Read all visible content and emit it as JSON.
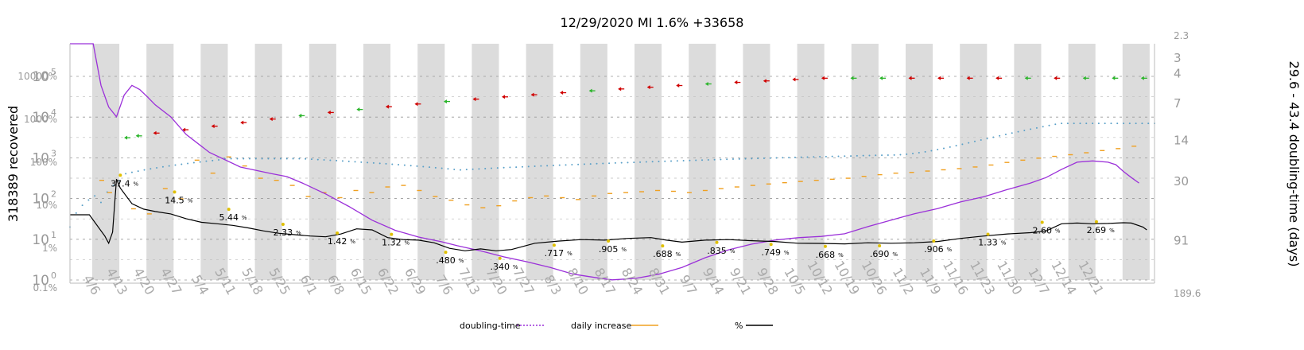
{
  "chart_data": {
    "type": "line",
    "title": "12/29/2020 MI 1.6% +33658",
    "ylabel_left": "318389 recovered",
    "ylabel_right": "29.6 - 43.4 doubling-time (days)",
    "x_ticks": [
      "4/6",
      "4/13",
      "4/20",
      "4/27",
      "5/4",
      "5/11",
      "5/18",
      "5/25",
      "6/1",
      "6/8",
      "6/15",
      "6/22",
      "6/29",
      "7/6",
      "7/13",
      "7/20",
      "7/27",
      "8/3",
      "8/10",
      "8/17",
      "8/24",
      "8/31",
      "9/7",
      "9/14",
      "9/21",
      "9/28",
      "10/5",
      "10/12",
      "10/19",
      "10/26",
      "11/2",
      "11/9",
      "11/16",
      "11/23",
      "11/30",
      "12/7",
      "12/14",
      "12/21"
    ],
    "left_ticks_count": [
      {
        "label": "10",
        "exp": "0",
        "value": 1
      },
      {
        "label": "10",
        "exp": "1",
        "value": 10
      },
      {
        "label": "10",
        "exp": "2",
        "value": 100
      },
      {
        "label": "10",
        "exp": "3",
        "value": 1000
      },
      {
        "label": "10",
        "exp": "4",
        "value": 10000
      },
      {
        "label": "10",
        "exp": "5",
        "value": 100000
      }
    ],
    "left_ticks_percent": [
      "0.1%",
      "1%",
      "10%",
      "100%",
      "1000%",
      "10000%"
    ],
    "right_ticks": [
      "2.3",
      "3",
      "4",
      "7",
      "14",
      "30",
      "91",
      "189.6"
    ],
    "legend": [
      {
        "label": "doubling-time",
        "color": "#9b30d9",
        "style": "dotted"
      },
      {
        "label": "daily increase",
        "color": "#f0a020",
        "style": "solid"
      },
      {
        "label": "%",
        "color": "#000000",
        "style": "solid"
      }
    ],
    "percent_labels": [
      {
        "x": "4/13",
        "text": "37.4",
        "unit": "%"
      },
      {
        "x": "4/27",
        "text": "14.5",
        "unit": "%"
      },
      {
        "x": "5/11",
        "text": "5.44",
        "unit": "%"
      },
      {
        "x": "5/25",
        "text": "2.33",
        "unit": "%"
      },
      {
        "x": "6/8",
        "text": "1.42",
        "unit": "%"
      },
      {
        "x": "6/22",
        "text": "1.32",
        "unit": "%"
      },
      {
        "x": "7/6",
        "text": ".480",
        "unit": "%"
      },
      {
        "x": "7/20",
        "text": ".340",
        "unit": "%"
      },
      {
        "x": "8/3",
        "text": ".717",
        "unit": "%"
      },
      {
        "x": "8/17",
        "text": ".905",
        "unit": "%"
      },
      {
        "x": "8/31",
        "text": ".688",
        "unit": "%"
      },
      {
        "x": "9/14",
        "text": ".835",
        "unit": "%"
      },
      {
        "x": "9/28",
        "text": ".749",
        "unit": "%"
      },
      {
        "x": "10/12",
        "text": ".668",
        "unit": "%"
      },
      {
        "x": "10/26",
        "text": ".690",
        "unit": "%"
      },
      {
        "x": "11/9",
        "text": ".906",
        "unit": "%"
      },
      {
        "x": "11/23",
        "text": "1.33",
        "unit": "%"
      },
      {
        "x": "12/7",
        "text": "2.60",
        "unit": "%"
      },
      {
        "x": "12/21",
        "text": "2.69",
        "unit": "%"
      }
    ],
    "series": [
      {
        "name": "%",
        "color": "#000000",
        "points": [
          [
            0,
            4
          ],
          [
            5,
            4
          ],
          [
            9,
            1.2
          ],
          [
            10,
            0.8
          ],
          [
            11,
            1.5
          ],
          [
            12,
            30
          ],
          [
            13,
            18
          ],
          [
            16,
            7.5
          ],
          [
            19,
            5.5
          ],
          [
            22,
            4.8
          ],
          [
            26,
            4.2
          ],
          [
            30,
            3.2
          ],
          [
            34,
            2.6
          ],
          [
            38,
            2.4
          ],
          [
            42,
            2.2
          ],
          [
            46,
            1.9
          ],
          [
            50,
            1.6
          ],
          [
            54,
            1.4
          ],
          [
            58,
            1.3
          ],
          [
            62,
            1.2
          ],
          [
            66,
            1.15
          ],
          [
            70,
            1.35
          ],
          [
            74,
            1.8
          ],
          [
            78,
            1.7
          ],
          [
            82,
            1.1
          ],
          [
            86,
            0.98
          ],
          [
            90,
            0.95
          ],
          [
            94,
            0.82
          ],
          [
            98,
            0.6
          ],
          [
            102,
            0.52
          ],
          [
            106,
            0.58
          ],
          [
            110,
            0.52
          ],
          [
            114,
            0.56
          ],
          [
            120,
            0.8
          ],
          [
            126,
            0.9
          ],
          [
            132,
            0.98
          ],
          [
            138,
            0.95
          ],
          [
            144,
            1.05
          ],
          [
            150,
            1.1
          ],
          [
            154,
            0.95
          ],
          [
            158,
            0.85
          ],
          [
            164,
            0.95
          ],
          [
            170,
            0.98
          ],
          [
            176,
            0.92
          ],
          [
            182,
            0.88
          ],
          [
            188,
            0.8
          ],
          [
            194,
            0.79
          ],
          [
            200,
            0.77
          ],
          [
            206,
            0.82
          ],
          [
            212,
            0.8
          ],
          [
            218,
            0.82
          ],
          [
            224,
            0.88
          ],
          [
            230,
            1.05
          ],
          [
            236,
            1.2
          ],
          [
            242,
            1.35
          ],
          [
            248,
            1.45
          ],
          [
            252,
            1.6
          ],
          [
            256,
            2.4
          ],
          [
            260,
            2.5
          ],
          [
            264,
            2.4
          ],
          [
            268,
            2.45
          ],
          [
            272,
            2.55
          ],
          [
            274,
            2.5
          ],
          [
            277,
            2.0
          ],
          [
            278,
            1.7
          ]
        ]
      },
      {
        "name": "doubling-time",
        "color": "#9b30d9",
        "points": [
          [
            0,
            0.12
          ],
          [
            2,
            0.01
          ],
          [
            4,
            0.08
          ],
          [
            6,
            2.0
          ],
          [
            8,
            5.0
          ],
          [
            10,
            7.5
          ],
          [
            12,
            9.0
          ],
          [
            14,
            6.0
          ],
          [
            16,
            5.0
          ],
          [
            18,
            5.4
          ],
          [
            20,
            6.2
          ],
          [
            22,
            7.2
          ],
          [
            26,
            9.0
          ],
          [
            30,
            12.5
          ],
          [
            36,
            17.5
          ],
          [
            44,
            23.0
          ],
          [
            52,
            26.0
          ],
          [
            56,
            27.5
          ],
          [
            60,
            31
          ],
          [
            66,
            38
          ],
          [
            72,
            48
          ],
          [
            78,
            62
          ],
          [
            84,
            75
          ],
          [
            90,
            85
          ],
          [
            96,
            93
          ],
          [
            100,
            100
          ],
          [
            106,
            110
          ],
          [
            112,
            123
          ],
          [
            118,
            135
          ],
          [
            124,
            150
          ],
          [
            130,
            170
          ],
          [
            136,
            182
          ],
          [
            140,
            189
          ],
          [
            146,
            184
          ],
          [
            152,
            170
          ],
          [
            158,
            150
          ],
          [
            164,
            125
          ],
          [
            170,
            108
          ],
          [
            176,
            97
          ],
          [
            182,
            90
          ],
          [
            188,
            86
          ],
          [
            194,
            84
          ],
          [
            200,
            80
          ],
          [
            206,
            70
          ],
          [
            212,
            62
          ],
          [
            218,
            55
          ],
          [
            224,
            50
          ],
          [
            230,
            44
          ],
          [
            236,
            40
          ],
          [
            242,
            35
          ],
          [
            248,
            31
          ],
          [
            252,
            28
          ],
          [
            256,
            24
          ],
          [
            260,
            21
          ],
          [
            264,
            20.5
          ],
          [
            268,
            21
          ],
          [
            270,
            22
          ],
          [
            272,
            25
          ],
          [
            274,
            28
          ],
          [
            276,
            31
          ]
        ]
      },
      {
        "name": "daily increase",
        "color": "#f0a020",
        "points": [
          [
            4,
            8
          ],
          [
            5,
            4
          ],
          [
            8,
            1.6
          ],
          [
            10,
            1.2
          ],
          [
            12,
            5
          ],
          [
            14,
            2.8
          ],
          [
            16,
            25
          ],
          [
            18,
            12
          ],
          [
            20,
            30
          ],
          [
            22,
            18
          ],
          [
            24,
            9
          ],
          [
            26,
            8
          ],
          [
            28,
            6
          ],
          [
            30,
            3.2
          ],
          [
            32,
            4
          ],
          [
            34,
            3
          ],
          [
            36,
            4.5
          ],
          [
            38,
            4
          ],
          [
            40,
            5.5
          ],
          [
            42,
            6
          ],
          [
            44,
            4.5
          ],
          [
            46,
            3.2
          ],
          [
            48,
            2.6
          ],
          [
            50,
            2.0
          ],
          [
            52,
            1.7
          ],
          [
            54,
            1.9
          ],
          [
            56,
            2.5
          ],
          [
            58,
            3.0
          ],
          [
            60,
            3.3
          ],
          [
            62,
            3.0
          ],
          [
            64,
            2.7
          ],
          [
            66,
            3.3
          ],
          [
            68,
            3.8
          ],
          [
            70,
            4.0
          ],
          [
            72,
            4.2
          ],
          [
            74,
            4.5
          ],
          [
            76,
            4.3
          ],
          [
            78,
            4.0
          ],
          [
            80,
            4.5
          ],
          [
            82,
            5.0
          ],
          [
            84,
            5.5
          ],
          [
            86,
            6.0
          ],
          [
            88,
            6.5
          ],
          [
            90,
            7.0
          ],
          [
            92,
            7.5
          ],
          [
            94,
            8.0
          ],
          [
            96,
            8.5
          ],
          [
            98,
            9.0
          ],
          [
            100,
            10.0
          ],
          [
            102,
            11.0
          ],
          [
            104,
            12.0
          ],
          [
            106,
            12.5
          ],
          [
            108,
            13.5
          ],
          [
            110,
            14.5
          ],
          [
            112,
            15.5
          ],
          [
            114,
            17
          ],
          [
            116,
            19
          ],
          [
            118,
            22
          ],
          [
            120,
            25
          ],
          [
            122,
            28
          ],
          [
            124,
            31
          ],
          [
            126,
            34
          ],
          [
            128,
            38
          ],
          [
            130,
            43
          ],
          [
            132,
            48
          ],
          [
            134,
            55
          ]
        ]
      }
    ],
    "arrow_markers": [
      {
        "x": 10,
        "label": "+"
      },
      {
        "x": 12,
        "label": "+"
      },
      {
        "x": 15,
        "label": "-"
      },
      {
        "x": 20,
        "label": "-"
      },
      {
        "x": 25,
        "label": "-"
      },
      {
        "x": 30,
        "label": "-"
      },
      {
        "x": 35,
        "label": "-"
      },
      {
        "x": 40,
        "label": "+"
      },
      {
        "x": 45,
        "label": "-"
      },
      {
        "x": 50,
        "label": "+"
      },
      {
        "x": 55,
        "label": "-"
      },
      {
        "x": 60,
        "label": "-"
      },
      {
        "x": 65,
        "label": "+"
      },
      {
        "x": 70,
        "label": "-"
      },
      {
        "x": 75,
        "label": "-"
      },
      {
        "x": 80,
        "label": "-"
      },
      {
        "x": 85,
        "label": "-"
      },
      {
        "x": 90,
        "label": "+"
      },
      {
        "x": 95,
        "label": "-"
      },
      {
        "x": 100,
        "label": "-"
      },
      {
        "x": 105,
        "label": "-"
      },
      {
        "x": 110,
        "label": "+"
      },
      {
        "x": 115,
        "label": "-"
      },
      {
        "x": 120,
        "label": "-"
      },
      {
        "x": 125,
        "label": "-"
      },
      {
        "x": 130,
        "label": "-"
      },
      {
        "x": 135,
        "label": "+"
      },
      {
        "x": 140,
        "label": "+"
      },
      {
        "x": 145,
        "label": "-"
      },
      {
        "x": 150,
        "label": "-"
      },
      {
        "x": 155,
        "label": "-"
      },
      {
        "x": 160,
        "label": "-"
      },
      {
        "x": 165,
        "label": "+"
      },
      {
        "x": 170,
        "label": "-"
      },
      {
        "x": 175,
        "label": "+"
      },
      {
        "x": 180,
        "label": "+"
      },
      {
        "x": 185,
        "label": "+"
      }
    ],
    "grid": true,
    "legend_position": "bottom"
  }
}
